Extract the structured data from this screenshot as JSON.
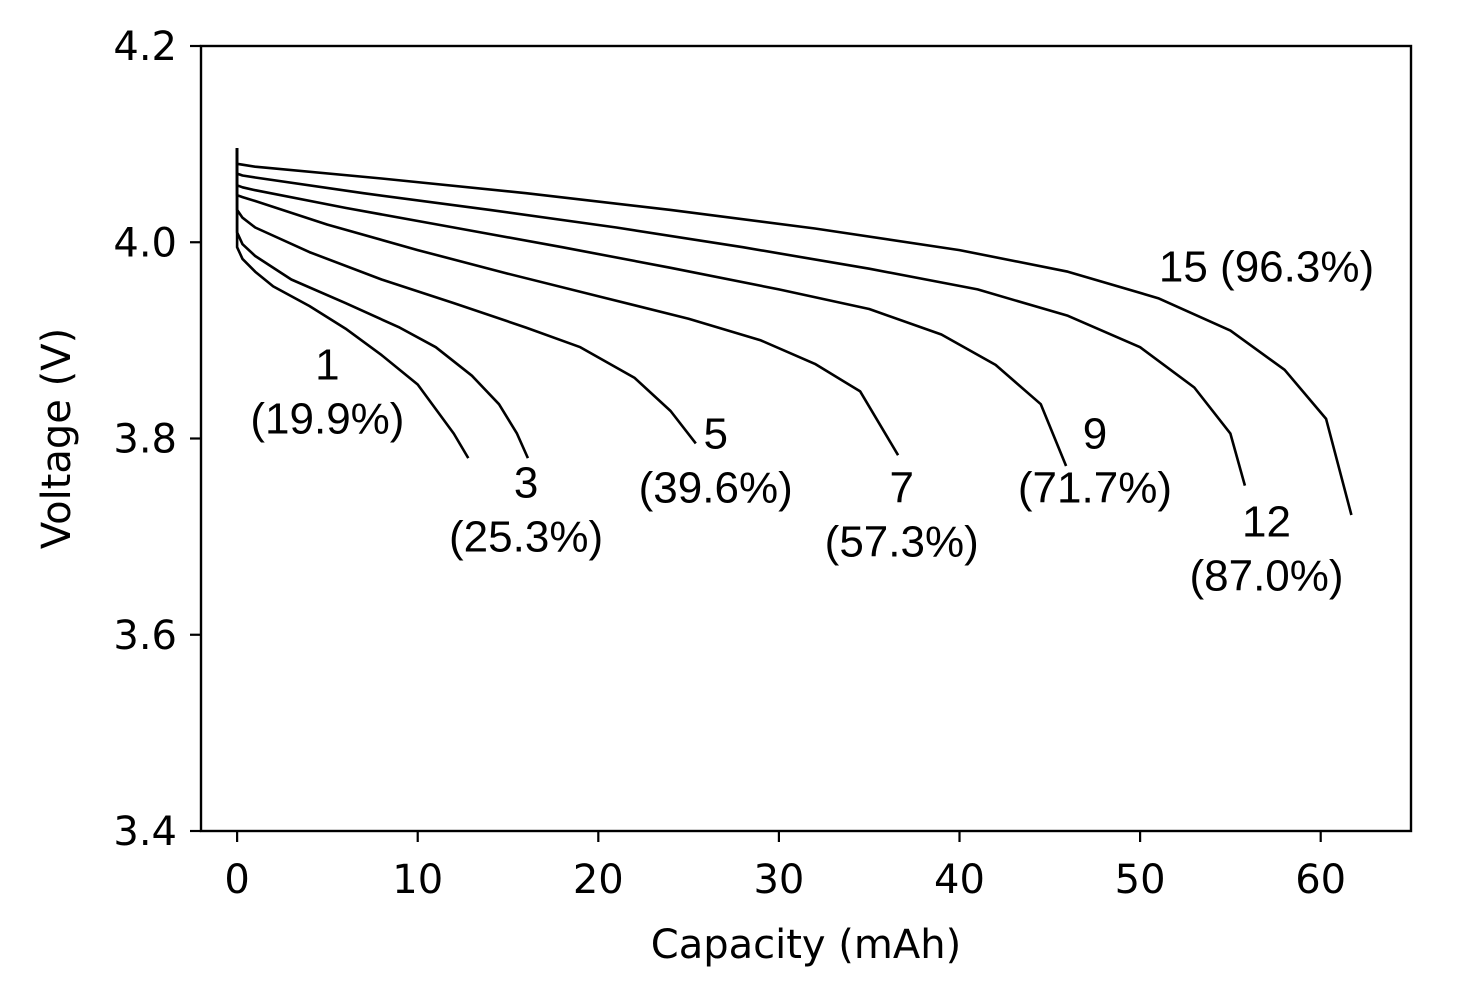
{
  "chart_data": {
    "type": "line",
    "title": "",
    "xlabel": "Capacity (mAh)",
    "ylabel": "Voltage (V)",
    "xlim": [
      -2,
      65
    ],
    "ylim": [
      3.4,
      4.2
    ],
    "xticks": [
      0,
      10,
      20,
      30,
      40,
      50,
      60
    ],
    "yticks": [
      3.4,
      3.6,
      3.8,
      4.0,
      4.2
    ],
    "xtick_labels": [
      "0",
      "10",
      "20",
      "30",
      "40",
      "50",
      "60"
    ],
    "ytick_labels": [
      "3.4",
      "3.6",
      "3.8",
      "4.0",
      "4.2"
    ],
    "grid": false,
    "legend": "none",
    "line_color": "#000000",
    "series": [
      {
        "name": "1",
        "label": "(19.9%)",
        "x": [
          0,
          0,
          0.3,
          1,
          2,
          4,
          6,
          8,
          10,
          11,
          12,
          12.8
        ],
        "y": [
          4.096,
          3.995,
          3.983,
          3.97,
          3.955,
          3.935,
          3.912,
          3.885,
          3.855,
          3.83,
          3.805,
          3.78
        ]
      },
      {
        "name": "3",
        "label": "(25.3%)",
        "x": [
          0,
          0,
          0.3,
          1,
          3,
          6,
          9,
          11,
          13,
          14.5,
          15.5,
          16.1
        ],
        "y": [
          4.096,
          4.01,
          3.998,
          3.986,
          3.962,
          3.938,
          3.913,
          3.893,
          3.864,
          3.835,
          3.805,
          3.78
        ]
      },
      {
        "name": "5",
        "label": "(39.6%)",
        "x": [
          0,
          0,
          0.3,
          1,
          4,
          8,
          12,
          16,
          19,
          22,
          24,
          25.4
        ],
        "y": [
          4.096,
          4.033,
          4.025,
          4.015,
          3.99,
          3.962,
          3.938,
          3.913,
          3.893,
          3.862,
          3.828,
          3.795
        ]
      },
      {
        "name": "7",
        "label": "(57.3%)",
        "x": [
          0,
          0,
          0.3,
          1,
          5,
          10,
          15,
          20,
          25,
          29,
          32,
          34.5,
          36.6
        ],
        "y": [
          4.096,
          4.048,
          4.046,
          4.042,
          4.018,
          3.992,
          3.968,
          3.945,
          3.922,
          3.9,
          3.876,
          3.848,
          3.783
        ]
      },
      {
        "name": "9",
        "label": "(71.7%)",
        "x": [
          0,
          0,
          0.3,
          1,
          6,
          12,
          18,
          24,
          30,
          35,
          39,
          42,
          44.5,
          45.9
        ],
        "y": [
          4.096,
          4.058,
          4.056,
          4.053,
          4.035,
          4.015,
          3.995,
          3.974,
          3.952,
          3.932,
          3.906,
          3.875,
          3.835,
          3.772
        ]
      },
      {
        "name": "12",
        "label": "(87.0%)",
        "x": [
          0,
          0,
          0.3,
          1,
          7,
          14,
          21,
          28,
          35,
          41,
          46,
          50,
          53,
          55,
          55.8
        ],
        "y": [
          4.096,
          4.07,
          4.068,
          4.066,
          4.05,
          4.033,
          4.015,
          3.995,
          3.973,
          3.952,
          3.925,
          3.893,
          3.852,
          3.805,
          3.752
        ]
      },
      {
        "name": "15",
        "label": "(96.3%)",
        "x": [
          0,
          0,
          0.3,
          1,
          8,
          16,
          24,
          32,
          40,
          46,
          51,
          55,
          58,
          60.3,
          61.7
        ],
        "y": [
          4.096,
          4.08,
          4.079,
          4.077,
          4.065,
          4.05,
          4.033,
          4.014,
          3.992,
          3.97,
          3.943,
          3.91,
          3.87,
          3.82,
          3.722
        ]
      }
    ],
    "annotations": [
      {
        "series": "1",
        "lines": [
          "1",
          "(19.9%)"
        ],
        "x": 5,
        "y": 3.86
      },
      {
        "series": "3",
        "lines": [
          "3",
          "(25.3%)"
        ],
        "x": 16,
        "y": 3.74
      },
      {
        "series": "5",
        "lines": [
          "5",
          "(39.6%)"
        ],
        "x": 26.5,
        "y": 3.79
      },
      {
        "series": "7",
        "lines": [
          "7",
          "(57.3%)"
        ],
        "x": 36.8,
        "y": 3.735
      },
      {
        "series": "9",
        "lines": [
          "9",
          "(71.7%)"
        ],
        "x": 47.5,
        "y": 3.79
      },
      {
        "series": "12",
        "lines": [
          "12",
          "(87.0%)"
        ],
        "x": 57,
        "y": 3.7
      },
      {
        "series": "15",
        "lines": [
          "15 (96.3%)"
        ],
        "x": 57,
        "y": 3.96
      }
    ]
  }
}
